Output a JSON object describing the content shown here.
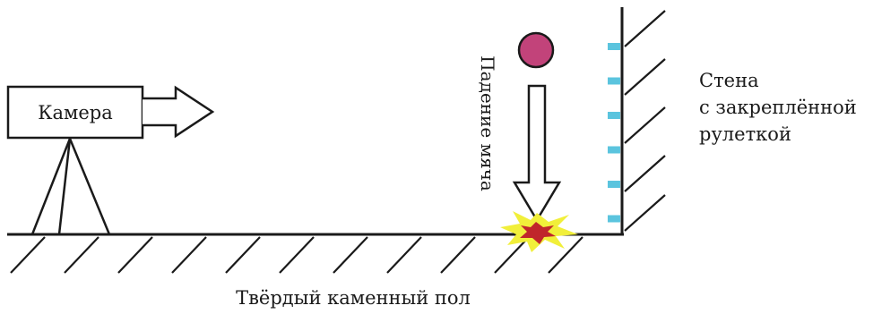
{
  "labels": {
    "camera": "Камера",
    "falling_ball": "Падение мяча",
    "wall_line1": "Стена",
    "wall_line2": "с закреплённой",
    "wall_line3": "рулеткой",
    "floor": "Твёрдый каменный пол"
  },
  "colors": {
    "ball": "#c2437a",
    "tape_marks": "#5bc4de",
    "impact_outer": "#f1ef3a",
    "impact_inner": "#c0262b",
    "lines": "#1a1a1a"
  },
  "tape_mark_count": 6
}
